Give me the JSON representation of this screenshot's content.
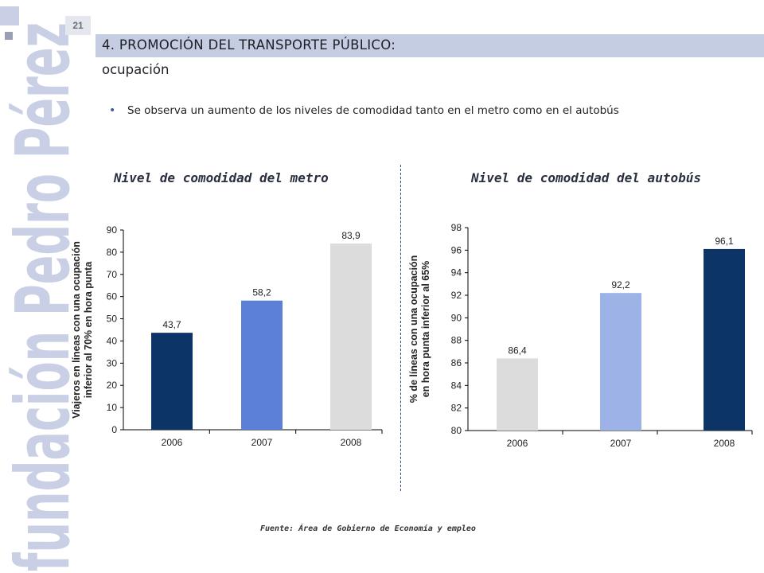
{
  "page": {
    "number": "21",
    "title": "4. PROMOCIÓN DEL TRANSPORTE PÚBLICO:",
    "subtitle": "ocupación",
    "bullet": "Se observa un aumento de los niveles de comodidad tanto en el metro como en el autobús",
    "source": "Fuente:  Área de Gobierno de Economía y empleo",
    "watermark_text": "fundación Pedro Pérez"
  },
  "colors": {
    "title_band": "#c5cde3",
    "divider": "#2f4a86",
    "watermark": "#c9cfe4",
    "dark_navy": "#0d3466",
    "medium_blue": "#5b80d5",
    "light_blue": "#9db2e6",
    "light_gray": "#dcdcdc"
  },
  "chart_data": [
    {
      "type": "bar",
      "title": "Nivel de comodidad del metro",
      "ylabel_lines": [
        "Viajeros en líneas con una ocupación",
        "inferior  al 70% en hora punta"
      ],
      "categories": [
        "2006",
        "2007",
        "2008"
      ],
      "values": [
        43.7,
        58.2,
        83.9
      ],
      "value_labels": [
        "43,7",
        "58,2",
        "83,9"
      ],
      "bar_colors": [
        "#0d3466",
        "#5b80d5",
        "#dcdcdc"
      ],
      "ylim": [
        0,
        90
      ],
      "yticks": [
        0,
        10,
        20,
        30,
        40,
        50,
        60,
        70,
        80,
        90
      ],
      "grid": false
    },
    {
      "type": "bar",
      "title": "Nivel de comodidad del autobús",
      "ylabel_lines": [
        "% de líneas con una ocupación",
        "en hora punta inferior al 65%"
      ],
      "categories": [
        "2006",
        "2007",
        "2008"
      ],
      "values": [
        86.4,
        92.2,
        96.1
      ],
      "value_labels": [
        "86,4",
        "92,2",
        "96,1"
      ],
      "bar_colors": [
        "#dcdcdc",
        "#9db2e6",
        "#0d3466"
      ],
      "ylim": [
        80,
        98
      ],
      "yticks": [
        80,
        82,
        84,
        86,
        88,
        90,
        92,
        94,
        96,
        98
      ],
      "grid": false
    }
  ]
}
